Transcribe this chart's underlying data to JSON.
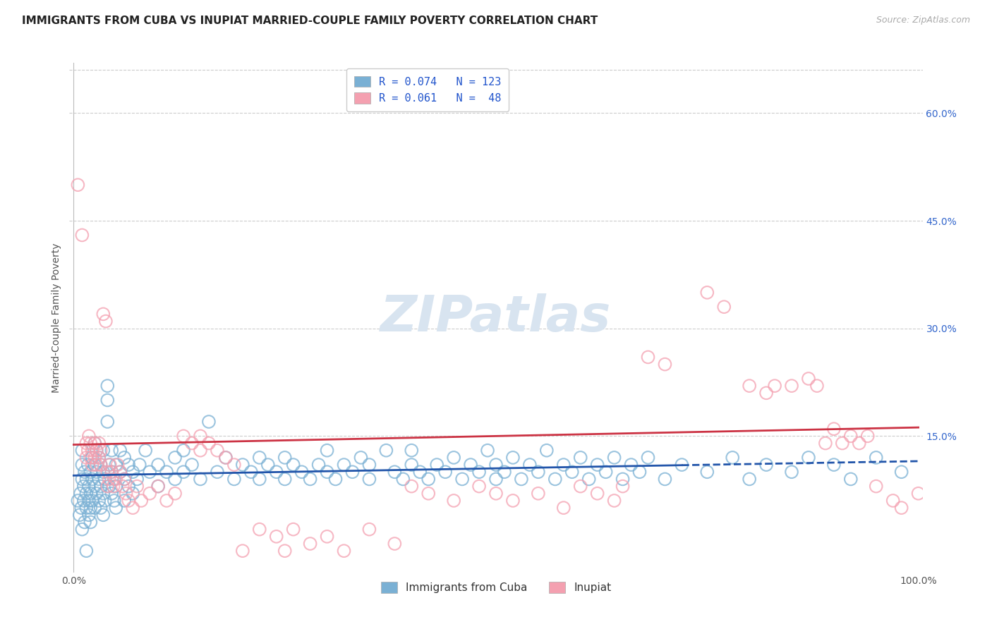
{
  "title": "IMMIGRANTS FROM CUBA VS INUPIAT MARRIED-COUPLE FAMILY POVERTY CORRELATION CHART",
  "source_text": "Source: ZipAtlas.com",
  "ylabel": "Married-Couple Family Poverty",
  "xlim": [
    -0.005,
    1.005
  ],
  "ylim": [
    -0.04,
    0.67
  ],
  "ytick_values": [
    0.15,
    0.3,
    0.45,
    0.6
  ],
  "grid_color": "#cccccc",
  "background_color": "#ffffff",
  "watermark_color": "#d8e4f0",
  "blue_color": "#7ab0d4",
  "pink_color": "#f4a0b0",
  "blue_line_color": "#2255aa",
  "pink_line_color": "#cc3344",
  "blue_line_solid_end": 0.72,
  "blue_scatter": [
    [
      0.005,
      0.06
    ],
    [
      0.007,
      0.04
    ],
    [
      0.008,
      0.07
    ],
    [
      0.009,
      0.05
    ],
    [
      0.01,
      0.09
    ],
    [
      0.01,
      0.11
    ],
    [
      0.01,
      0.13
    ],
    [
      0.01,
      0.02
    ],
    [
      0.012,
      0.06
    ],
    [
      0.012,
      0.08
    ],
    [
      0.013,
      0.1
    ],
    [
      0.013,
      0.03
    ],
    [
      0.015,
      0.07
    ],
    [
      0.015,
      0.09
    ],
    [
      0.015,
      0.05
    ],
    [
      0.015,
      -0.01
    ],
    [
      0.017,
      0.11
    ],
    [
      0.018,
      0.08
    ],
    [
      0.018,
      0.06
    ],
    [
      0.018,
      0.04
    ],
    [
      0.02,
      0.1
    ],
    [
      0.02,
      0.07
    ],
    [
      0.02,
      0.05
    ],
    [
      0.02,
      0.03
    ],
    [
      0.022,
      0.09
    ],
    [
      0.022,
      0.12
    ],
    [
      0.022,
      0.06
    ],
    [
      0.025,
      0.11
    ],
    [
      0.025,
      0.08
    ],
    [
      0.025,
      0.05
    ],
    [
      0.025,
      0.14
    ],
    [
      0.027,
      0.1
    ],
    [
      0.027,
      0.07
    ],
    [
      0.027,
      0.13
    ],
    [
      0.03,
      0.09
    ],
    [
      0.03,
      0.06
    ],
    [
      0.03,
      0.12
    ],
    [
      0.032,
      0.08
    ],
    [
      0.032,
      0.11
    ],
    [
      0.032,
      0.05
    ],
    [
      0.035,
      0.1
    ],
    [
      0.035,
      0.07
    ],
    [
      0.035,
      0.13
    ],
    [
      0.035,
      0.04
    ],
    [
      0.037,
      0.09
    ],
    [
      0.037,
      0.06
    ],
    [
      0.04,
      0.2
    ],
    [
      0.04,
      0.22
    ],
    [
      0.04,
      0.17
    ],
    [
      0.042,
      0.11
    ],
    [
      0.042,
      0.08
    ],
    [
      0.045,
      0.1
    ],
    [
      0.045,
      0.07
    ],
    [
      0.045,
      0.13
    ],
    [
      0.048,
      0.09
    ],
    [
      0.048,
      0.06
    ],
    [
      0.05,
      0.11
    ],
    [
      0.05,
      0.08
    ],
    [
      0.05,
      0.05
    ],
    [
      0.055,
      0.1
    ],
    [
      0.055,
      0.13
    ],
    [
      0.06,
      0.09
    ],
    [
      0.06,
      0.12
    ],
    [
      0.06,
      0.06
    ],
    [
      0.065,
      0.11
    ],
    [
      0.065,
      0.08
    ],
    [
      0.07,
      0.1
    ],
    [
      0.07,
      0.07
    ],
    [
      0.075,
      0.09
    ],
    [
      0.078,
      0.11
    ],
    [
      0.085,
      0.13
    ],
    [
      0.09,
      0.1
    ],
    [
      0.1,
      0.11
    ],
    [
      0.1,
      0.08
    ],
    [
      0.11,
      0.1
    ],
    [
      0.12,
      0.09
    ],
    [
      0.12,
      0.12
    ],
    [
      0.13,
      0.1
    ],
    [
      0.13,
      0.13
    ],
    [
      0.14,
      0.11
    ],
    [
      0.15,
      0.09
    ],
    [
      0.16,
      0.17
    ],
    [
      0.17,
      0.1
    ],
    [
      0.18,
      0.12
    ],
    [
      0.19,
      0.09
    ],
    [
      0.2,
      0.11
    ],
    [
      0.21,
      0.1
    ],
    [
      0.22,
      0.12
    ],
    [
      0.22,
      0.09
    ],
    [
      0.23,
      0.11
    ],
    [
      0.24,
      0.1
    ],
    [
      0.25,
      0.09
    ],
    [
      0.25,
      0.12
    ],
    [
      0.26,
      0.11
    ],
    [
      0.27,
      0.1
    ],
    [
      0.28,
      0.09
    ],
    [
      0.29,
      0.11
    ],
    [
      0.3,
      0.1
    ],
    [
      0.3,
      0.13
    ],
    [
      0.31,
      0.09
    ],
    [
      0.32,
      0.11
    ],
    [
      0.33,
      0.1
    ],
    [
      0.34,
      0.12
    ],
    [
      0.35,
      0.09
    ],
    [
      0.35,
      0.11
    ],
    [
      0.37,
      0.13
    ],
    [
      0.38,
      0.1
    ],
    [
      0.39,
      0.09
    ],
    [
      0.4,
      0.11
    ],
    [
      0.4,
      0.13
    ],
    [
      0.41,
      0.1
    ],
    [
      0.42,
      0.09
    ],
    [
      0.43,
      0.11
    ],
    [
      0.44,
      0.1
    ],
    [
      0.45,
      0.12
    ],
    [
      0.46,
      0.09
    ],
    [
      0.47,
      0.11
    ],
    [
      0.48,
      0.1
    ],
    [
      0.49,
      0.13
    ],
    [
      0.5,
      0.11
    ],
    [
      0.5,
      0.09
    ],
    [
      0.51,
      0.1
    ],
    [
      0.52,
      0.12
    ],
    [
      0.53,
      0.09
    ],
    [
      0.54,
      0.11
    ],
    [
      0.55,
      0.1
    ],
    [
      0.56,
      0.13
    ],
    [
      0.57,
      0.09
    ],
    [
      0.58,
      0.11
    ],
    [
      0.59,
      0.1
    ],
    [
      0.6,
      0.12
    ],
    [
      0.61,
      0.09
    ],
    [
      0.62,
      0.11
    ],
    [
      0.63,
      0.1
    ],
    [
      0.64,
      0.12
    ],
    [
      0.65,
      0.09
    ],
    [
      0.66,
      0.11
    ],
    [
      0.67,
      0.1
    ],
    [
      0.68,
      0.12
    ],
    [
      0.7,
      0.09
    ],
    [
      0.72,
      0.11
    ],
    [
      0.75,
      0.1
    ],
    [
      0.78,
      0.12
    ],
    [
      0.8,
      0.09
    ],
    [
      0.82,
      0.11
    ],
    [
      0.85,
      0.1
    ],
    [
      0.87,
      0.12
    ],
    [
      0.9,
      0.11
    ],
    [
      0.92,
      0.09
    ],
    [
      0.95,
      0.12
    ],
    [
      0.98,
      0.1
    ]
  ],
  "pink_scatter": [
    [
      0.005,
      0.5
    ],
    [
      0.01,
      0.43
    ],
    [
      0.015,
      0.14
    ],
    [
      0.015,
      0.12
    ],
    [
      0.017,
      0.13
    ],
    [
      0.018,
      0.15
    ],
    [
      0.02,
      0.14
    ],
    [
      0.02,
      0.12
    ],
    [
      0.022,
      0.13
    ],
    [
      0.022,
      0.11
    ],
    [
      0.025,
      0.14
    ],
    [
      0.025,
      0.12
    ],
    [
      0.027,
      0.13
    ],
    [
      0.027,
      0.11
    ],
    [
      0.03,
      0.14
    ],
    [
      0.03,
      0.12
    ],
    [
      0.032,
      0.13
    ],
    [
      0.032,
      0.11
    ],
    [
      0.035,
      0.32
    ],
    [
      0.038,
      0.31
    ],
    [
      0.04,
      0.1
    ],
    [
      0.04,
      0.08
    ],
    [
      0.042,
      0.09
    ],
    [
      0.043,
      0.11
    ],
    [
      0.045,
      0.1
    ],
    [
      0.047,
      0.08
    ],
    [
      0.05,
      0.09
    ],
    [
      0.052,
      0.11
    ],
    [
      0.055,
      0.1
    ],
    [
      0.058,
      0.08
    ],
    [
      0.06,
      0.09
    ],
    [
      0.062,
      0.07
    ],
    [
      0.065,
      0.06
    ],
    [
      0.07,
      0.05
    ],
    [
      0.075,
      0.08
    ],
    [
      0.08,
      0.06
    ],
    [
      0.09,
      0.07
    ],
    [
      0.1,
      0.08
    ],
    [
      0.11,
      0.06
    ],
    [
      0.12,
      0.07
    ],
    [
      0.13,
      0.15
    ],
    [
      0.14,
      0.14
    ],
    [
      0.15,
      0.13
    ],
    [
      0.15,
      0.15
    ],
    [
      0.16,
      0.14
    ],
    [
      0.17,
      0.13
    ],
    [
      0.18,
      0.12
    ],
    [
      0.19,
      0.11
    ],
    [
      0.2,
      -0.01
    ],
    [
      0.22,
      0.02
    ],
    [
      0.24,
      0.01
    ],
    [
      0.25,
      -0.01
    ],
    [
      0.26,
      0.02
    ],
    [
      0.28,
      0.0
    ],
    [
      0.3,
      0.01
    ],
    [
      0.32,
      -0.01
    ],
    [
      0.35,
      0.02
    ],
    [
      0.38,
      0.0
    ],
    [
      0.4,
      0.08
    ],
    [
      0.42,
      0.07
    ],
    [
      0.45,
      0.06
    ],
    [
      0.48,
      0.08
    ],
    [
      0.5,
      0.07
    ],
    [
      0.52,
      0.06
    ],
    [
      0.55,
      0.07
    ],
    [
      0.58,
      0.05
    ],
    [
      0.6,
      0.08
    ],
    [
      0.62,
      0.07
    ],
    [
      0.64,
      0.06
    ],
    [
      0.65,
      0.08
    ],
    [
      0.68,
      0.26
    ],
    [
      0.7,
      0.25
    ],
    [
      0.75,
      0.35
    ],
    [
      0.77,
      0.33
    ],
    [
      0.8,
      0.22
    ],
    [
      0.82,
      0.21
    ],
    [
      0.83,
      0.22
    ],
    [
      0.85,
      0.22
    ],
    [
      0.87,
      0.23
    ],
    [
      0.88,
      0.22
    ],
    [
      0.89,
      0.14
    ],
    [
      0.9,
      0.16
    ],
    [
      0.91,
      0.14
    ],
    [
      0.92,
      0.15
    ],
    [
      0.93,
      0.14
    ],
    [
      0.94,
      0.15
    ],
    [
      0.95,
      0.08
    ],
    [
      0.97,
      0.06
    ],
    [
      0.98,
      0.05
    ],
    [
      1.0,
      0.07
    ]
  ]
}
